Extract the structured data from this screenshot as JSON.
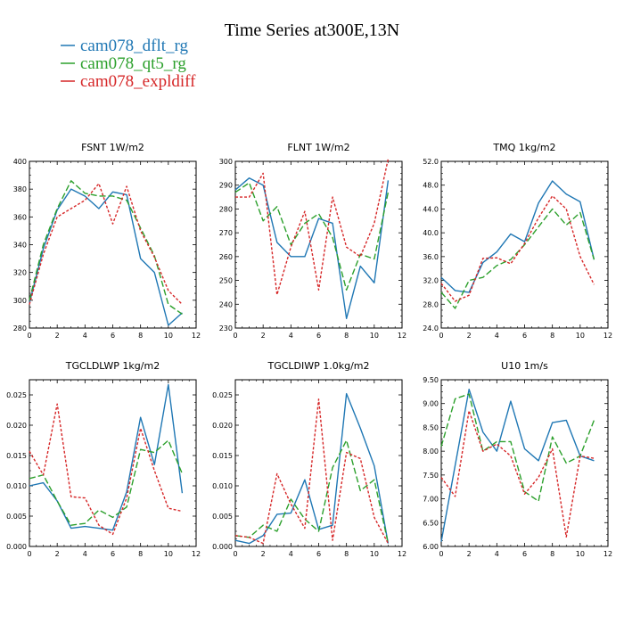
{
  "figure": {
    "title": "Time Series at300E,13N"
  },
  "legend": [
    {
      "label": "cam078_dflt_rg",
      "color": "#1f77b4",
      "dash": "solid"
    },
    {
      "label": "cam078_qt5_rg",
      "color": "#2ca02c",
      "dash": "dashed"
    },
    {
      "label": "cam078_expldiff",
      "color": "#d62728",
      "dash": "dotted"
    }
  ],
  "chart_data": [
    {
      "type": "line",
      "title": "FSNT   1W/m2",
      "xlim": [
        0,
        12
      ],
      "ylim": [
        280,
        400
      ],
      "xticks": [
        0,
        2,
        4,
        6,
        8,
        10,
        12
      ],
      "yticks": [
        280,
        300,
        320,
        340,
        360,
        380,
        400
      ],
      "ytick_labels": [
        "280",
        "300",
        "320",
        "340",
        "360",
        "380",
        "400"
      ],
      "x": [
        0,
        1,
        2,
        3,
        4,
        5,
        6,
        7,
        8,
        9,
        10,
        11
      ],
      "series": [
        {
          "name": "cam078_dflt_rg",
          "values": [
            298,
            337,
            365,
            380,
            375,
            366,
            378,
            376,
            330,
            320,
            282,
            291
          ]
        },
        {
          "name": "cam078_qt5_rg",
          "values": [
            300,
            340,
            366,
            386,
            377,
            375,
            375,
            372,
            352,
            332,
            297,
            290
          ]
        },
        {
          "name": "cam078_expldiff",
          "values": [
            297,
            333,
            360,
            366,
            372,
            384,
            355,
            382,
            350,
            331,
            307,
            297
          ]
        }
      ]
    },
    {
      "type": "line",
      "title": "FLNT   1W/m2",
      "xlim": [
        0,
        12
      ],
      "ylim": [
        230,
        300
      ],
      "xticks": [
        0,
        2,
        4,
        6,
        8,
        10,
        12
      ],
      "yticks": [
        230,
        240,
        250,
        260,
        270,
        280,
        290,
        300
      ],
      "ytick_labels": [
        "230",
        "240",
        "250",
        "260",
        "270",
        "280",
        "290",
        "300"
      ],
      "x": [
        0,
        1,
        2,
        3,
        4,
        5,
        6,
        7,
        8,
        9,
        10,
        11
      ],
      "series": [
        {
          "name": "cam078_dflt_rg",
          "values": [
            288,
            293,
            290,
            266,
            260,
            260,
            276,
            274,
            234,
            256,
            249,
            292
          ]
        },
        {
          "name": "cam078_qt5_rg",
          "values": [
            287,
            291,
            275,
            281,
            265,
            274,
            278,
            268,
            246,
            261,
            259,
            287
          ]
        },
        {
          "name": "cam078_expldiff",
          "values": [
            285,
            285,
            295,
            244,
            264,
            279,
            246,
            285,
            264,
            260,
            274,
            301
          ]
        }
      ]
    },
    {
      "type": "line",
      "title": "TMQ   1kg/m2",
      "xlim": [
        0,
        12
      ],
      "ylim": [
        24,
        52
      ],
      "xticks": [
        0,
        2,
        4,
        6,
        8,
        10,
        12
      ],
      "yticks": [
        24,
        28,
        32,
        36,
        40,
        44,
        48,
        52
      ],
      "ytick_labels": [
        "24.0",
        "28.0",
        "32.0",
        "36.0",
        "40.0",
        "44.0",
        "48.0",
        "52.0"
      ],
      "x": [
        0,
        1,
        2,
        3,
        4,
        5,
        6,
        7,
        8,
        9,
        10,
        11
      ],
      "series": [
        {
          "name": "cam078_dflt_rg",
          "values": [
            32.5,
            30.3,
            30.0,
            35.0,
            36.8,
            39.8,
            38.5,
            45.0,
            48.7,
            46.5,
            45.2,
            35.5
          ]
        },
        {
          "name": "cam078_qt5_rg",
          "values": [
            30.0,
            27.3,
            32.0,
            32.5,
            34.5,
            35.5,
            38.0,
            41.0,
            44.0,
            41.3,
            43.4,
            35.5
          ]
        },
        {
          "name": "cam078_expldiff",
          "values": [
            31.5,
            28.5,
            29.5,
            35.7,
            35.8,
            34.8,
            38.2,
            42.5,
            46.2,
            44.0,
            36.0,
            31.3
          ]
        }
      ]
    },
    {
      "type": "line",
      "title": "TGCLDLWP   1kg/m2",
      "xlim": [
        0,
        12
      ],
      "ylim": [
        0,
        0.0275
      ],
      "xticks": [
        0,
        2,
        4,
        6,
        8,
        10,
        12
      ],
      "yticks": [
        0,
        0.005,
        0.01,
        0.015,
        0.02,
        0.025
      ],
      "ytick_labels": [
        "0.000",
        "0.005",
        "0.010",
        "0.015",
        "0.020",
        "0.025"
      ],
      "x": [
        0,
        1,
        2,
        3,
        4,
        5,
        6,
        7,
        8,
        9,
        10,
        11
      ],
      "series": [
        {
          "name": "cam078_dflt_rg",
          "values": [
            0.01,
            0.0105,
            0.0075,
            0.003,
            0.0033,
            0.003,
            0.0027,
            0.009,
            0.0213,
            0.0135,
            0.0267,
            0.0088
          ]
        },
        {
          "name": "cam078_qt5_rg",
          "values": [
            0.0112,
            0.0118,
            0.0075,
            0.0035,
            0.0038,
            0.006,
            0.0048,
            0.0065,
            0.016,
            0.0155,
            0.0175,
            0.012
          ]
        },
        {
          "name": "cam078_expldiff",
          "values": [
            0.0157,
            0.0118,
            0.0235,
            0.0082,
            0.008,
            0.0035,
            0.002,
            0.008,
            0.0195,
            0.0125,
            0.0063,
            0.0058
          ]
        }
      ]
    },
    {
      "type": "line",
      "title": "TGCLDIWP   1.0kg/m2",
      "xlim": [
        0,
        12
      ],
      "ylim": [
        0,
        0.0275
      ],
      "xticks": [
        0,
        2,
        4,
        6,
        8,
        10,
        12
      ],
      "yticks": [
        0,
        0.005,
        0.01,
        0.015,
        0.02,
        0.025
      ],
      "ytick_labels": [
        "0.000",
        "0.005",
        "0.010",
        "0.015",
        "0.020",
        "0.025"
      ],
      "x": [
        0,
        1,
        2,
        3,
        4,
        5,
        6,
        7,
        8,
        9,
        10,
        11
      ],
      "series": [
        {
          "name": "cam078_dflt_rg",
          "values": [
            0.001,
            0.0005,
            0.0018,
            0.0053,
            0.0055,
            0.011,
            0.0028,
            0.0035,
            0.0252,
            0.0195,
            0.0133,
            0.0005
          ]
        },
        {
          "name": "cam078_qt5_rg",
          "values": [
            0.0018,
            0.0015,
            0.0035,
            0.0025,
            0.0078,
            0.0045,
            0.0025,
            0.013,
            0.0175,
            0.0092,
            0.011,
            0.0005
          ]
        },
        {
          "name": "cam078_expldiff",
          "values": [
            0.0018,
            0.0015,
            0.0005,
            0.012,
            0.007,
            0.003,
            0.0243,
            0.001,
            0.0155,
            0.0145,
            0.0048,
            0.0005
          ]
        }
      ]
    },
    {
      "type": "line",
      "title": "U10   1m/s",
      "xlim": [
        0,
        12
      ],
      "ylim": [
        6.0,
        9.5
      ],
      "xticks": [
        0,
        2,
        4,
        6,
        8,
        10,
        12
      ],
      "yticks": [
        6.0,
        6.5,
        7.0,
        7.5,
        8.0,
        8.5,
        9.0,
        9.5
      ],
      "ytick_labels": [
        "6.00",
        "6.50",
        "7.00",
        "7.50",
        "8.00",
        "8.50",
        "9.00",
        "9.50"
      ],
      "x": [
        0,
        1,
        2,
        3,
        4,
        5,
        6,
        7,
        8,
        9,
        10,
        11
      ],
      "series": [
        {
          "name": "cam078_dflt_rg",
          "values": [
            6.1,
            7.7,
            9.3,
            8.4,
            8.0,
            9.05,
            8.05,
            7.8,
            8.6,
            8.65,
            7.9,
            7.8
          ]
        },
        {
          "name": "cam078_qt5_rg",
          "values": [
            8.1,
            9.1,
            9.2,
            8.0,
            8.2,
            8.2,
            7.15,
            6.95,
            8.3,
            7.75,
            7.9,
            8.65
          ]
        },
        {
          "name": "cam078_expldiff",
          "values": [
            7.45,
            7.05,
            8.85,
            8.0,
            8.15,
            7.9,
            7.1,
            7.45,
            8.05,
            6.2,
            7.9,
            7.85
          ]
        }
      ]
    }
  ]
}
